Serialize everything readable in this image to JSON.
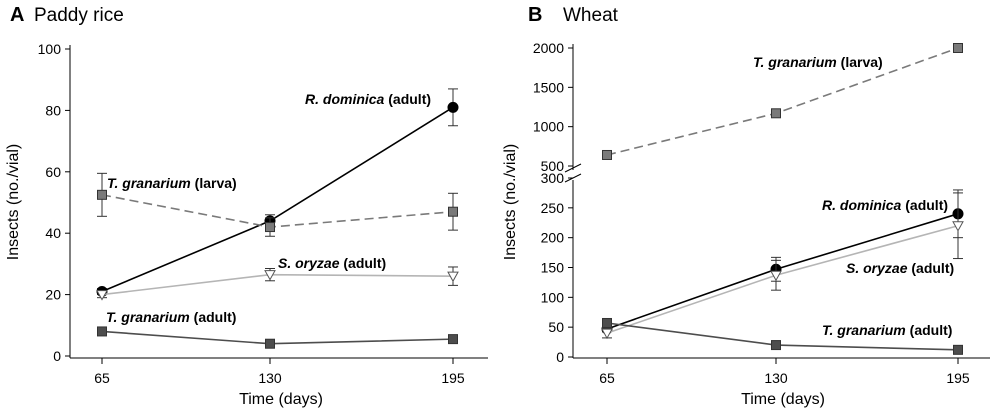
{
  "chart_data": [
    {
      "type": "line",
      "panel": "A",
      "title": "Paddy rice",
      "xlabel": "Time (days)",
      "ylabel": "Insects (no./vial)",
      "x": [
        65,
        130,
        195
      ],
      "xticks": [
        "65",
        "130",
        "195"
      ],
      "ylim": [
        0,
        100
      ],
      "yticks": [
        0,
        20,
        40,
        60,
        80,
        100
      ],
      "series": [
        {
          "name": "R. dominica (adult)",
          "species": "R. dominica",
          "stage": "(adult)",
          "values": [
            21,
            44,
            81
          ],
          "errors": [
            1,
            2,
            6
          ],
          "marker": "circle",
          "color": "#000000",
          "line": "solid",
          "label_color": "#000000"
        },
        {
          "name": "T. granarium (larva)",
          "species": "T. granarium",
          "stage": "(larva)",
          "values": [
            52.5,
            42,
            47
          ],
          "errors": [
            7,
            3,
            6
          ],
          "marker": "square",
          "color": "#7a7a7a",
          "line": "dashed",
          "label_color": "#6b6b6b"
        },
        {
          "name": "S. oryzae (adult)",
          "species": "S. oryzae",
          "stage": "(adult)",
          "values": [
            20,
            26.5,
            26
          ],
          "errors": [
            1,
            2,
            3
          ],
          "marker": "triangle-down",
          "color": "#b5b5b5",
          "line": "solid",
          "label_color": "#9a9a9a"
        },
        {
          "name": "T. granarium (adult)",
          "species": "T. granarium",
          "stage": "(adult)",
          "values": [
            8,
            4,
            5.5
          ],
          "errors": [
            0.5,
            0.5,
            0.5
          ],
          "marker": "square",
          "color": "#4d4d4d",
          "line": "solid",
          "label_color": "#4d4d4d"
        }
      ]
    },
    {
      "type": "line",
      "panel": "B",
      "title": "Wheat",
      "xlabel": "Time (days)",
      "ylabel": "Insects (no./vial)",
      "x": [
        65,
        130,
        195
      ],
      "xticks": [
        "65",
        "130",
        "195"
      ],
      "axis_break": true,
      "ylim_lower": [
        0,
        300
      ],
      "yticks_lower": [
        0,
        50,
        100,
        150,
        200,
        250,
        300
      ],
      "ylim_upper": [
        500,
        2000
      ],
      "yticks_upper": [
        500,
        1000,
        1500,
        2000
      ],
      "series": [
        {
          "name": "T. granarium (larva)",
          "species": "T. granarium",
          "stage": "(larva)",
          "values": [
            640,
            1170,
            2000
          ],
          "errors": [
            0,
            0,
            0
          ],
          "marker": "square",
          "color": "#7a7a7a",
          "line": "dashed",
          "label_color": "#6b6b6b",
          "segment": "upper"
        },
        {
          "name": "R. dominica (adult)",
          "species": "R. dominica",
          "stage": "(adult)",
          "values": [
            47,
            147,
            240
          ],
          "errors": [
            5,
            20,
            40
          ],
          "marker": "circle",
          "color": "#000000",
          "line": "solid",
          "label_color": "#000000",
          "segment": "lower"
        },
        {
          "name": "S. oryzae (adult)",
          "species": "S. oryzae",
          "stage": "(adult)",
          "values": [
            40,
            137,
            220
          ],
          "errors": [
            8,
            25,
            55
          ],
          "marker": "triangle-down",
          "color": "#b5b5b5",
          "line": "solid",
          "label_color": "#9a9a9a",
          "segment": "lower"
        },
        {
          "name": "T. granarium (adult)",
          "species": "T. granarium",
          "stage": "(adult)",
          "values": [
            57,
            20,
            12
          ],
          "errors": [
            5,
            3,
            2
          ],
          "marker": "square",
          "color": "#4d4d4d",
          "line": "solid",
          "label_color": "#4d4d4d",
          "segment": "lower"
        }
      ]
    }
  ]
}
